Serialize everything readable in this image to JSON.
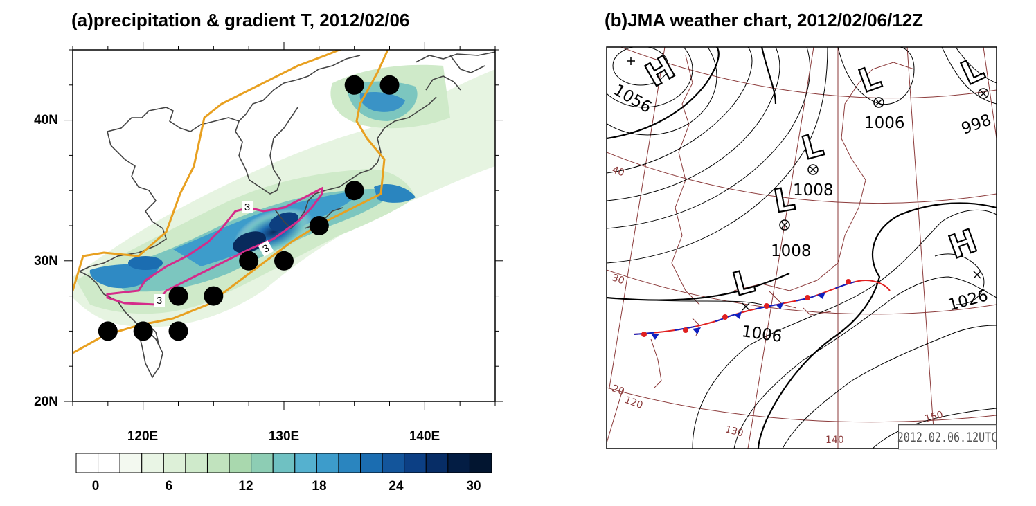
{
  "panel_a": {
    "title": "(a)precipitation & gradient T, 2012/02/06",
    "lat_labels": [
      "40N",
      "30N",
      "20N"
    ],
    "lon_labels": [
      "120E",
      "130E",
      "140E"
    ],
    "contour_label": "3",
    "colorbar": {
      "labels": [
        "0",
        "6",
        "12",
        "18",
        "24",
        "30"
      ],
      "colors": [
        "#ffffff",
        "#ffffff",
        "#f3f9f0",
        "#e9f5e5",
        "#ddf0d8",
        "#cfeacb",
        "#c1e3be",
        "#a9d8ae",
        "#8dcdb4",
        "#6fc1c2",
        "#55b1cf",
        "#3d9ccb",
        "#2a85bf",
        "#1b6db1",
        "#13559b",
        "#0c3f84",
        "#072d66",
        "#031d44",
        "#021530"
      ],
      "boundary_color": "#e8a020",
      "gradient_contour_color": "#d52b8a"
    },
    "dots_lonlat": [
      [
        135,
        42.5
      ],
      [
        137.5,
        42.5
      ],
      [
        135,
        35
      ],
      [
        132.5,
        32.5
      ],
      [
        127.5,
        30
      ],
      [
        130,
        30
      ],
      [
        122.5,
        27.5
      ],
      [
        125,
        27.5
      ],
      [
        117.5,
        25
      ],
      [
        120,
        25
      ],
      [
        122.5,
        25
      ]
    ]
  },
  "panel_b": {
    "title": "(b)JMA weather chart, 2012/02/06/12Z",
    "systems": [
      {
        "letter": "H",
        "value": "1056"
      },
      {
        "letter": "L",
        "value": "1006"
      },
      {
        "letter": "L",
        "value": "998"
      },
      {
        "letter": "L",
        "value": "1008"
      },
      {
        "letter": "L",
        "value": "1008"
      },
      {
        "letter": "H",
        "value": "1026"
      },
      {
        "letter": "L",
        "value": "1006"
      }
    ],
    "grid_labels": [
      "40",
      "30",
      "20",
      "120",
      "130",
      "140",
      "150"
    ],
    "stamp": "2012.02.06.12UTC",
    "grid_color": "#8b3a3a",
    "front_warm_color": "#e02020",
    "front_cold_color": "#1020c0"
  }
}
